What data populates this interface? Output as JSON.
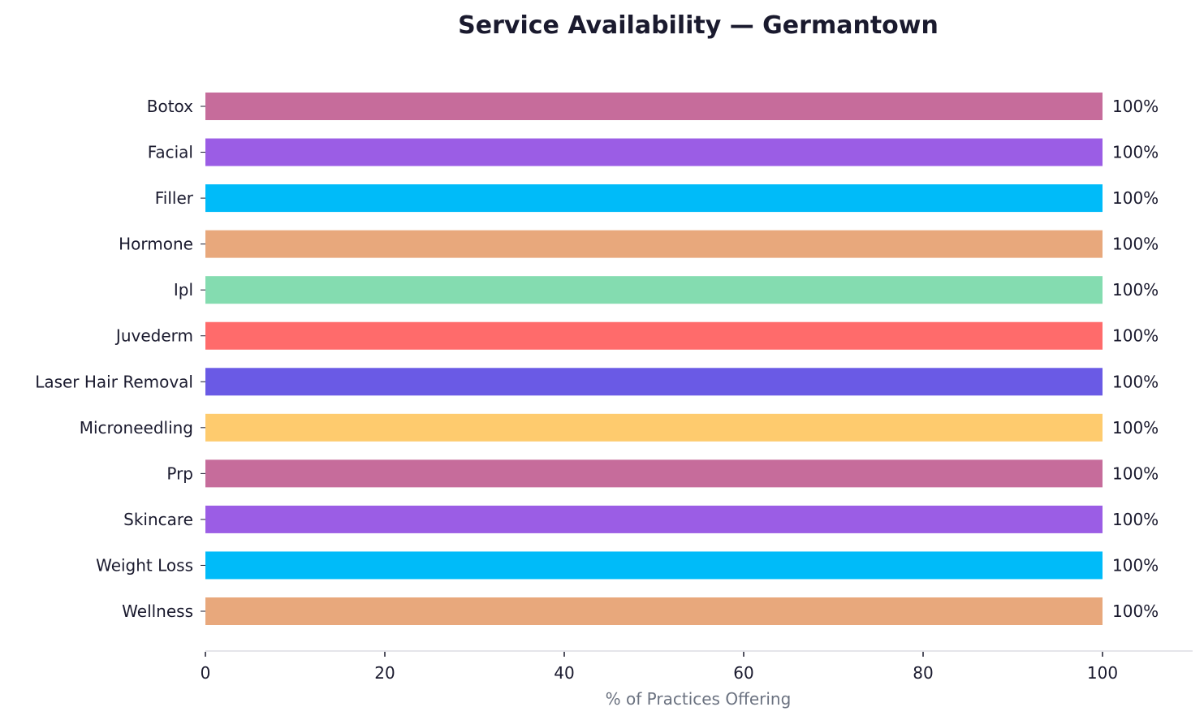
{
  "chart_data": {
    "type": "bar",
    "orientation": "horizontal",
    "title": "Service Availability — Germantown",
    "xlabel": "% of Practices Offering",
    "ylabel": "",
    "xlim": [
      0,
      110
    ],
    "xticks": [
      0,
      20,
      40,
      60,
      80,
      100
    ],
    "grid": false,
    "categories": [
      "Botox",
      "Facial",
      "Filler",
      "Hormone",
      "Ipl",
      "Juvederm",
      "Laser Hair Removal",
      "Microneedling",
      "Prp",
      "Skincare",
      "Weight Loss",
      "Wellness"
    ],
    "values": [
      100,
      100,
      100,
      100,
      100,
      100,
      100,
      100,
      100,
      100,
      100,
      100
    ],
    "data_labels": [
      "100%",
      "100%",
      "100%",
      "100%",
      "100%",
      "100%",
      "100%",
      "100%",
      "100%",
      "100%",
      "100%",
      "100%"
    ],
    "colors": [
      "#C66C9B",
      "#9B5DE5",
      "#00BBF9",
      "#E8A87C",
      "#84DCB0",
      "#FF6B6B",
      "#6A5AE5",
      "#FECB6E",
      "#C66C9B",
      "#9B5DE5",
      "#00BBF9",
      "#E8A87C"
    ]
  }
}
